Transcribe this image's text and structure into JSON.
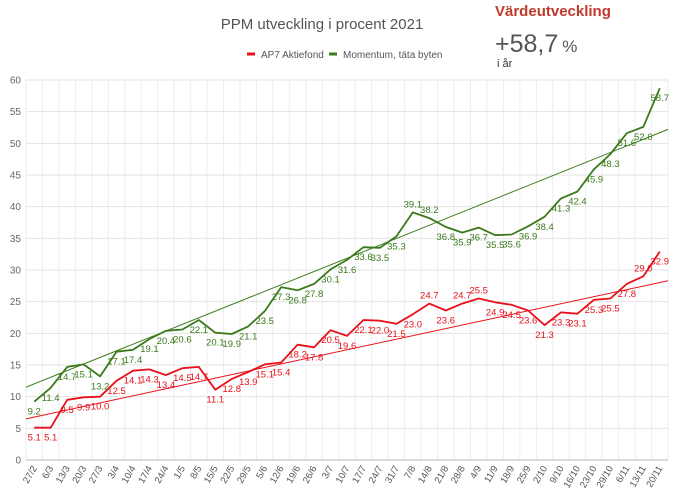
{
  "panel": {
    "title": "Värdeutveckling",
    "value": "+58,7",
    "unit": "%",
    "subtitle": "i år",
    "title_color": "#c0392b"
  },
  "chart_data": {
    "type": "line",
    "title": "PPM utveckling i procent 2021",
    "xlabel": "",
    "ylabel": "",
    "ylim": [
      0,
      60
    ],
    "yticks": [
      0,
      5,
      10,
      15,
      20,
      25,
      30,
      35,
      40,
      45,
      50,
      55,
      60
    ],
    "grid": true,
    "legend_position": "top-center",
    "categories": [
      "27/2",
      "6/3",
      "13/3",
      "20/3",
      "27/3",
      "3/4",
      "10/4",
      "17/4",
      "24/4",
      "1/5",
      "8/5",
      "15/5",
      "22/5",
      "29/5",
      "5/6",
      "12/6",
      "19/6",
      "26/6",
      "3/7",
      "10/7",
      "17/7",
      "24/7",
      "31/7",
      "7/8",
      "14/8",
      "21/8",
      "28/8",
      "4/9",
      "11/9",
      "18/9",
      "25/9",
      "2/10",
      "9/10",
      "16/10",
      "23/10",
      "29/10",
      "6/11",
      "13/11",
      "20/11"
    ],
    "series": [
      {
        "name": "AP7 Aktiefond",
        "color": "#e8101a",
        "values": [
          5.1,
          5.1,
          9.5,
          9.9,
          10.0,
          12.5,
          14.1,
          14.3,
          13.4,
          14.5,
          14.7,
          11.1,
          12.8,
          13.9,
          15.1,
          15.4,
          18.2,
          17.8,
          20.5,
          19.6,
          22.1,
          22.0,
          21.5,
          23.0,
          24.7,
          23.6,
          24.7,
          25.5,
          24.9,
          24.5,
          23.6,
          21.3,
          23.3,
          23.1,
          25.3,
          25.5,
          27.8,
          29.0,
          32.9
        ],
        "labels": [
          "5.1",
          "5.1",
          "9.5",
          "9.9",
          "10.0",
          "12.5",
          "14.1",
          "14.3",
          "13.4",
          "14.5",
          "14.7",
          "11.1",
          "12.8",
          "13.9",
          "15.1",
          "15.4",
          "18.2",
          "17.8",
          "20.5",
          "19.6",
          "22.1",
          "22.0",
          "21.5",
          "23.0",
          "24.7",
          "23.6",
          "24.7",
          "25.5",
          "24.9",
          "24.5",
          "23.6",
          "21.3",
          "23.3",
          "23.1",
          "25.3",
          "25.5",
          "27.8",
          "29.0",
          "32.9"
        ],
        "label_side": [
          "below",
          "below",
          "below",
          "below",
          "below",
          "below",
          "below",
          "below",
          "below",
          "below",
          "below",
          "below",
          "below",
          "below",
          "below",
          "below",
          "below",
          "below",
          "below",
          "below",
          "below",
          "below",
          "below",
          "below",
          "above",
          "below",
          "above",
          "above",
          "below",
          "below",
          "below",
          "below",
          "below",
          "below",
          "below",
          "below",
          "below",
          "above",
          "below"
        ]
      },
      {
        "name": "Momentum, täta byten",
        "color": "#3a7a1a",
        "values": [
          9.2,
          11.4,
          14.7,
          15.1,
          13.2,
          17.1,
          17.4,
          19.1,
          20.4,
          20.6,
          22.1,
          20.1,
          19.9,
          21.1,
          23.5,
          27.3,
          26.8,
          27.8,
          30.1,
          31.6,
          33.6,
          33.5,
          35.3,
          39.1,
          38.2,
          36.8,
          35.9,
          36.7,
          35.5,
          35.6,
          36.9,
          38.4,
          41.3,
          42.4,
          45.9,
          48.3,
          51.6,
          52.6,
          58.7
        ],
        "labels": [
          "9.2",
          "11.4",
          "14.7",
          "15.1",
          "13.2",
          "17.1",
          "17.4",
          "19.1",
          "20.4",
          "20.6",
          "22.1",
          "20.1",
          "19.9",
          "21.1",
          "23.5",
          "27.3",
          "26.8",
          "27.8",
          "30.1",
          "31.6",
          "33.6",
          "33.5",
          "35.3",
          "39.1",
          "38.2",
          "36.8",
          "35.9",
          "36.7",
          "35.5",
          "35.6",
          "36.9",
          "38.4",
          "41.3",
          "42.4",
          "45.9",
          "48.3",
          "51.6",
          "52.6",
          "58.7"
        ],
        "label_side": [
          "below",
          "below",
          "below",
          "below",
          "below",
          "below",
          "below",
          "below",
          "below",
          "below",
          "below",
          "below",
          "below",
          "below",
          "below",
          "below",
          "below",
          "below",
          "below",
          "below",
          "below",
          "below",
          "below",
          "above",
          "above",
          "below",
          "below",
          "below",
          "below",
          "below",
          "below",
          "below",
          "below",
          "below",
          "below",
          "below",
          "below",
          "below",
          "below"
        ]
      }
    ],
    "trendlines": [
      {
        "series": "AP7 Aktiefond",
        "from": [
          0,
          6.5
        ],
        "to": [
          38,
          28.3
        ]
      },
      {
        "series": "Momentum, täta byten",
        "from": [
          0,
          11.5
        ],
        "to": [
          38,
          52.2
        ]
      }
    ]
  }
}
